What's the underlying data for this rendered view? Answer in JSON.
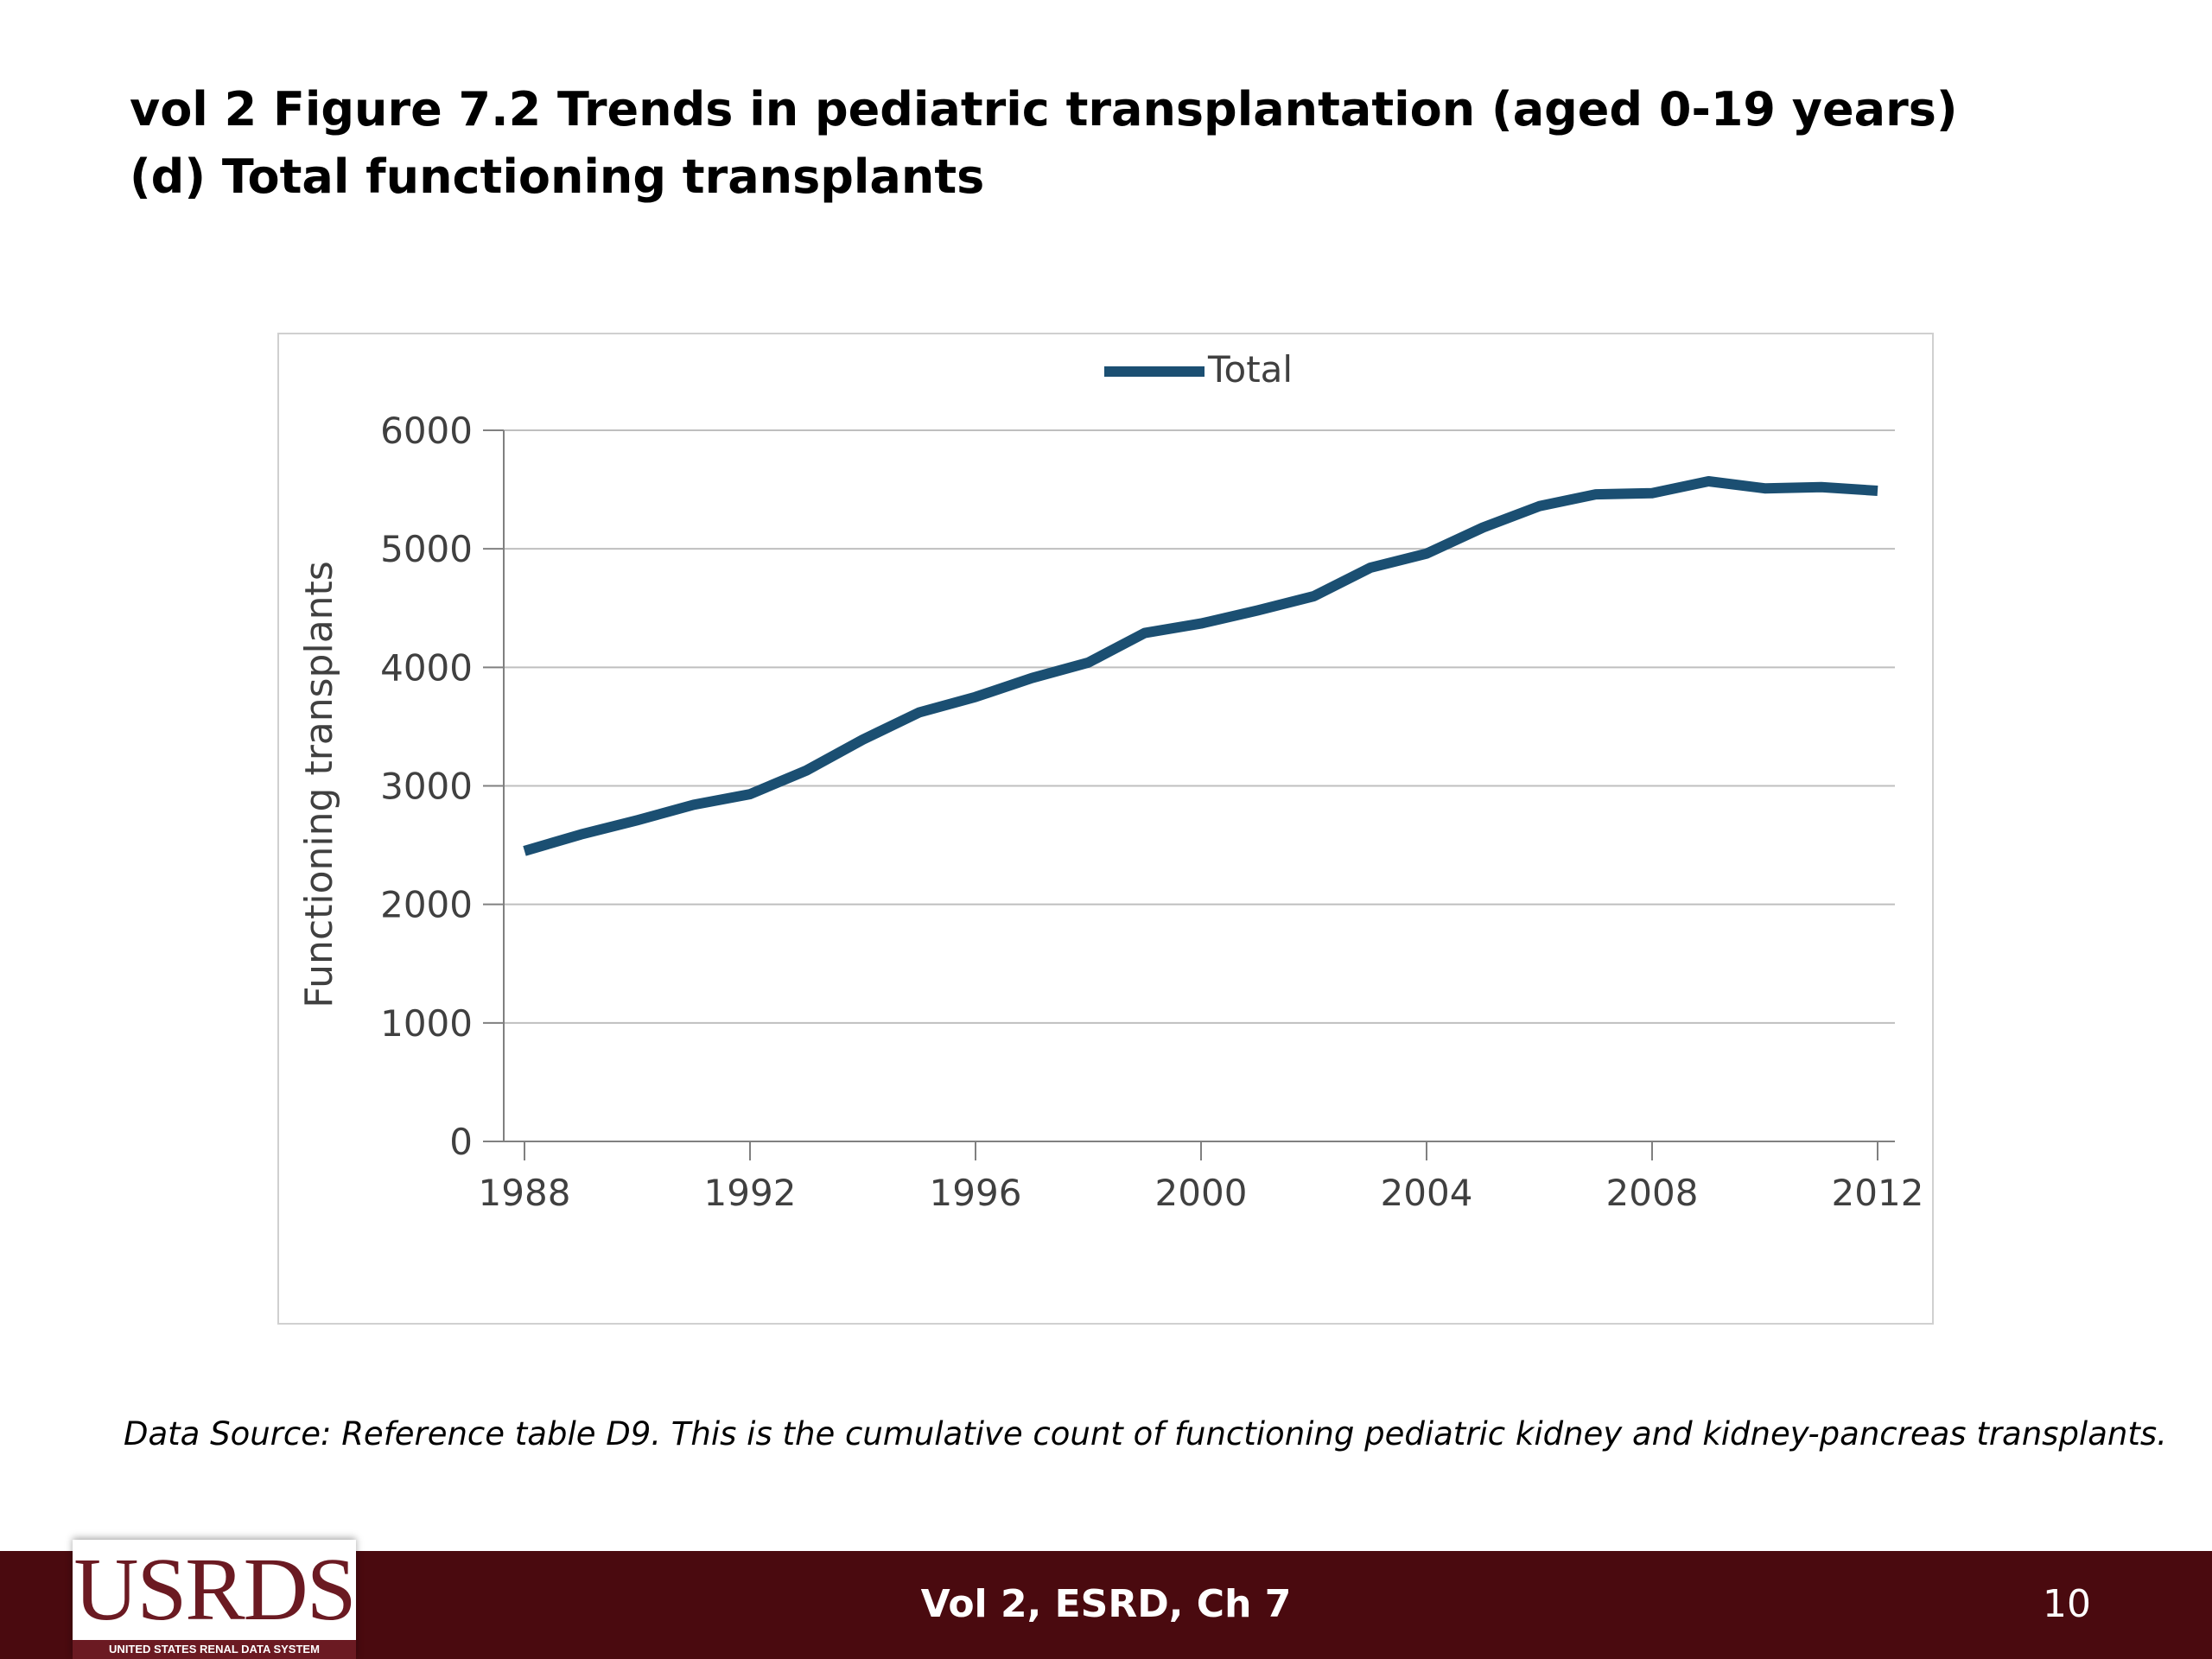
{
  "slide": {
    "title_line1": "vol 2 Figure 7.2 Trends in pediatric transplantation (aged 0-19 years)",
    "title_line2": "(d) Total functioning transplants",
    "source_note": "Data Source: Reference table D9. This is the cumulative count of functioning pediatric kidney and kidney-pancreas transplants.",
    "footer_center": "Vol 2, ESRD, Ch 7",
    "page_number": "10",
    "logo_text": "USRDS",
    "logo_subtitle": "UNITED STATES RENAL DATA SYSTEM"
  },
  "colors": {
    "series_line": "#1b4f72",
    "footer_bar": "#4a0a0f",
    "logo_red": "#6b1a22",
    "gridline": "#bfbfbf"
  },
  "chart_data": {
    "type": "line",
    "title": "",
    "xlabel": "",
    "ylabel": "Functioning transplants",
    "x": [
      1988,
      1989,
      1990,
      1991,
      1992,
      1993,
      1994,
      1995,
      1996,
      1997,
      1998,
      1999,
      2000,
      2001,
      2002,
      2003,
      2004,
      2005,
      2006,
      2007,
      2008,
      2009,
      2010,
      2011,
      2012
    ],
    "series": [
      {
        "name": "Total",
        "values": [
          2450,
          2590,
          2710,
          2840,
          2930,
          3130,
          3390,
          3620,
          3750,
          3910,
          4040,
          4290,
          4370,
          4480,
          4600,
          4840,
          4960,
          5180,
          5360,
          5460,
          5470,
          5570,
          5510,
          5520,
          5490
        ]
      }
    ],
    "xticks": [
      "1988",
      "1992",
      "1996",
      "2000",
      "2004",
      "2008",
      "2012"
    ],
    "yticks": [
      "0",
      "1000",
      "2000",
      "3000",
      "4000",
      "5000",
      "6000"
    ],
    "xlim": [
      1988,
      2012
    ],
    "ylim": [
      0,
      6000
    ],
    "grid": "horizontal",
    "legend_position": "top-center"
  }
}
